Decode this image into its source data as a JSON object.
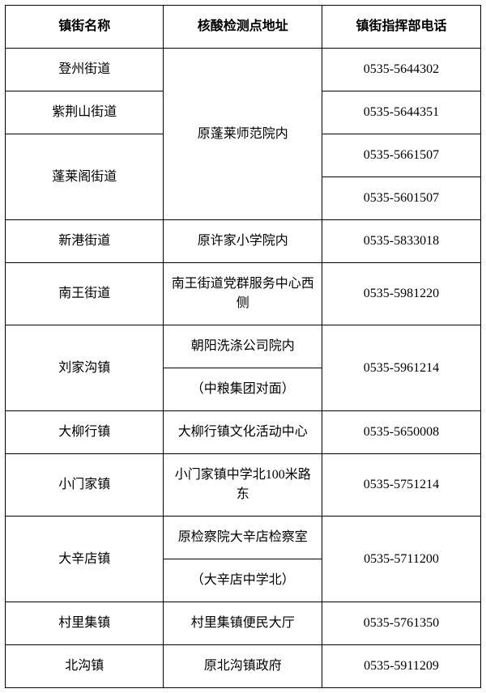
{
  "table": {
    "columns": [
      "镇街名称",
      "核酸检测点地址",
      "镇街指挥部电话"
    ],
    "header_fontweight": "bold",
    "border_color": "#000000",
    "background_color": "#ffffff",
    "text_color": "#000000",
    "font_size": 16,
    "col_widths": [
      "33.3%",
      "33.3%",
      "33.4%"
    ],
    "cells": {
      "r1c1": "登州街道",
      "r1_merged_c2": "原蓬莱师范院内",
      "r1c3": "0535-5644302",
      "r2c1": "紫荆山街道",
      "r2c3": "0535-5644351",
      "r3c1": "蓬莱阁街道",
      "r3c3": "0535-5661507",
      "r4c3": "0535-5601507",
      "r5c1": "新港街道",
      "r5c2": "原许家小学院内",
      "r5c3": "0535-5833018",
      "r6c1": "南王街道",
      "r6c2": "南王街道党群服务中心西侧",
      "r6c3": "0535-5981220",
      "r7c1": "刘家沟镇",
      "r7c2": "朝阳洗涤公司院内",
      "r7c3": "0535-5961214",
      "r8c2": "（中粮集团对面）",
      "r9c1": "大柳行镇",
      "r9c2": "大柳行镇文化活动中心",
      "r9c3": "0535-5650008",
      "r10c1": "小门家镇",
      "r10c2": "小门家镇中学北100米路东",
      "r10c3": "0535-5751214",
      "r11c1": "大辛店镇",
      "r11c2": "原检察院大辛店检察室",
      "r11c3": "0535-5711200",
      "r12c2": "（大辛店中学北）",
      "r13c1": "村里集镇",
      "r13c2": "村里集镇便民大厅",
      "r13c3": "0535-5761350",
      "r14c1": "北沟镇",
      "r14c2": "原北沟镇政府",
      "r14c3": "0535-5911209"
    }
  }
}
